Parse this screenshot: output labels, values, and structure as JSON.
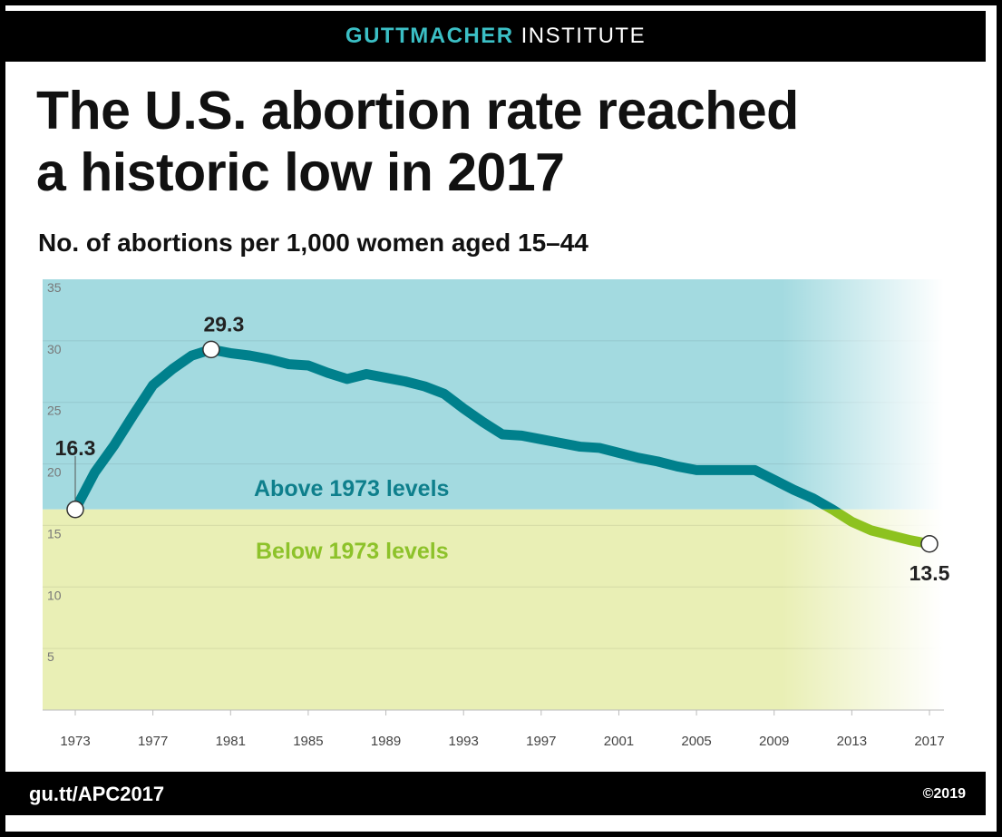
{
  "header": {
    "brand_primary": "GUTTMACHER",
    "brand_secondary": "INSTITUTE"
  },
  "footer": {
    "url": "gu.tt/APC2017",
    "copyright": "©2019"
  },
  "chart_data": {
    "type": "line",
    "title": "The U.S. abortion rate reached a historic low in 2017",
    "title_lines": [
      "The U.S. abortion rate reached",
      "a historic low in 2017"
    ],
    "subtitle": "No. of abortions per 1,000 women aged 15–44",
    "xlabel": "",
    "ylabel": "",
    "xlim": [
      1973,
      2017
    ],
    "ylim": [
      0,
      35
    ],
    "yticks": [
      "5",
      "10",
      "15",
      "20",
      "25",
      "30",
      "35"
    ],
    "ytick_values": [
      5,
      10,
      15,
      20,
      25,
      30,
      35
    ],
    "xticks": [
      "1973",
      "1977",
      "1981",
      "1985",
      "1989",
      "1993",
      "1997",
      "2001",
      "2005",
      "2009",
      "2013",
      "2017"
    ],
    "grid": true,
    "baseline": 16.3,
    "regions": [
      {
        "label": "Above 1973 levels",
        "color": "#a3dae0",
        "text_color": "#0e7f8c"
      },
      {
        "label": "Below 1973 levels",
        "color": "#e9efb5",
        "text_color": "#8dc22a"
      }
    ],
    "line_colors": {
      "above": "#00808c",
      "below": "#8dc21f"
    },
    "series": [
      {
        "name": "Abortion rate",
        "x": [
          1973,
          1974,
          1975,
          1976,
          1977,
          1978,
          1979,
          1980,
          1981,
          1982,
          1983,
          1984,
          1985,
          1986,
          1987,
          1988,
          1989,
          1990,
          1991,
          1992,
          1993,
          1994,
          1995,
          1996,
          1997,
          1998,
          1999,
          2000,
          2001,
          2002,
          2003,
          2004,
          2005,
          2006,
          2007,
          2008,
          2009,
          2010,
          2011,
          2012,
          2013,
          2014,
          2015,
          2016,
          2017
        ],
        "values": [
          16.3,
          19.3,
          21.5,
          24.0,
          26.4,
          27.7,
          28.8,
          29.3,
          29.0,
          28.8,
          28.5,
          28.1,
          28.0,
          27.4,
          26.9,
          27.3,
          27.0,
          26.7,
          26.3,
          25.7,
          24.5,
          23.4,
          22.4,
          22.3,
          22.0,
          21.7,
          21.4,
          21.3,
          20.9,
          20.5,
          20.2,
          19.8,
          19.5,
          19.5,
          19.5,
          19.5,
          18.7,
          17.9,
          17.2,
          16.3,
          15.3,
          14.6,
          14.2,
          13.8,
          13.5
        ]
      }
    ],
    "annotations": [
      {
        "x": 1973,
        "y": 16.3,
        "text": "16.3"
      },
      {
        "x": 1980,
        "y": 29.3,
        "text": "29.3"
      },
      {
        "x": 2017,
        "y": 13.5,
        "text": "13.5"
      }
    ]
  }
}
